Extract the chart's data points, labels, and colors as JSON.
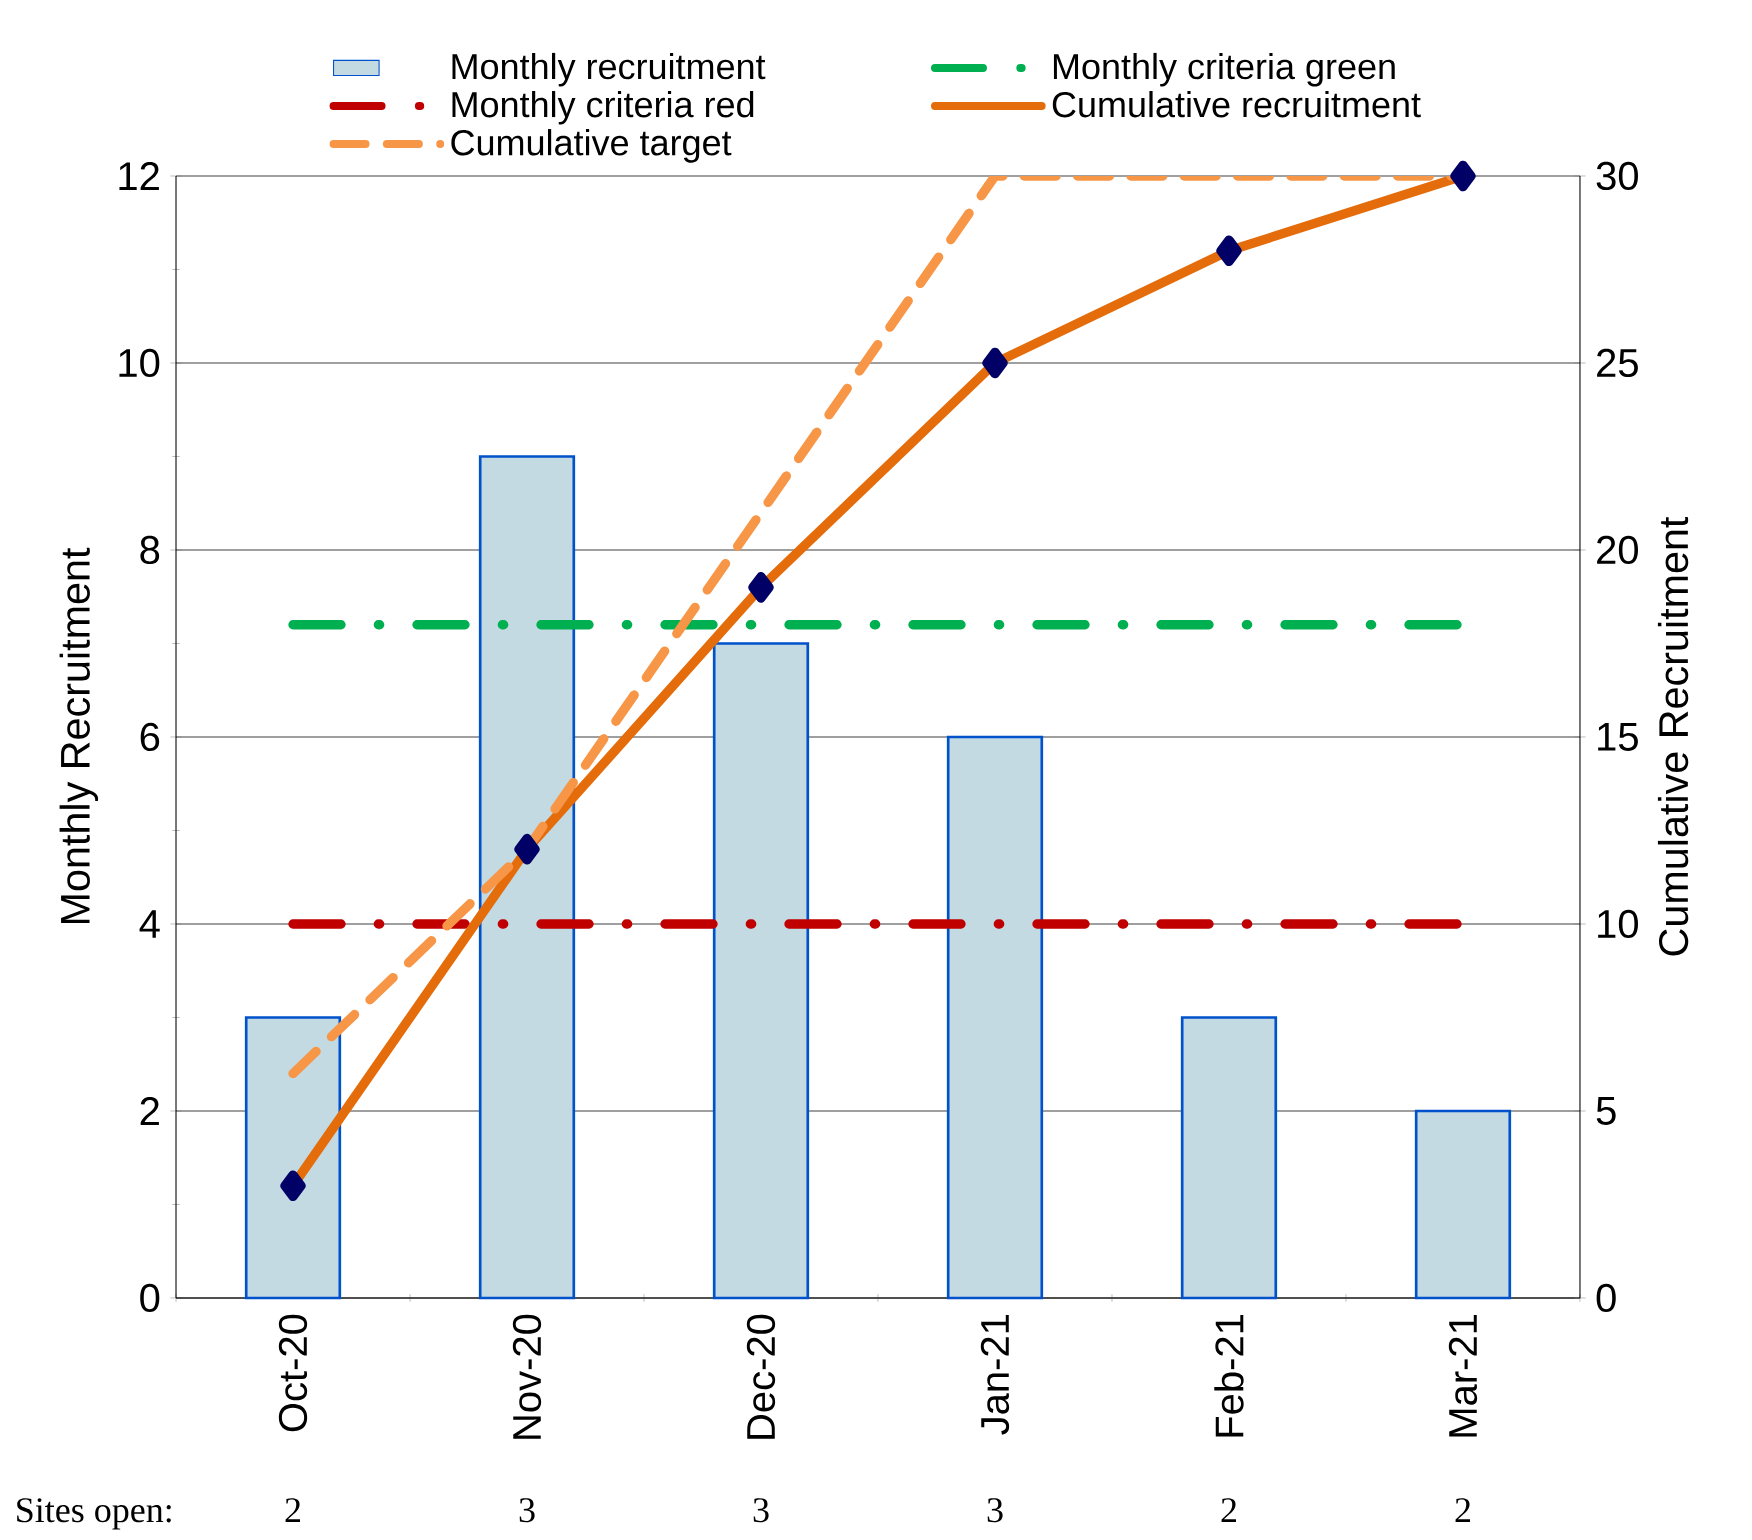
{
  "chart_data": {
    "type": "bar",
    "categories": [
      "Oct-20",
      "Nov-20",
      "Dec-20",
      "Jan-21",
      "Feb-21",
      "Mar-21"
    ],
    "series": [
      {
        "name": "Monthly recruitment",
        "color": "#c3dae2",
        "values": [
          3,
          9,
          7,
          6,
          3,
          2
        ]
      },
      {
        "name": "Monthly criteria green",
        "type": "line",
        "color": "#00b050",
        "line_style": "dashed",
        "values": [
          7.2,
          7.2,
          7.2,
          7.2,
          7.2,
          7.2
        ]
      },
      {
        "name": "Monthly criteria red",
        "type": "line",
        "color": "#c00000",
        "line_style": "dashed",
        "values": [
          4,
          4,
          4,
          4,
          4,
          4
        ]
      },
      {
        "name": "Cumulative recruitment",
        "type": "line",
        "axis": "y2",
        "color": "#e46c0a",
        "marker": "diamond",
        "values": [
          3,
          12,
          19,
          25,
          28,
          30
        ]
      },
      {
        "name": "Cumulative target",
        "type": "line",
        "axis": "y2",
        "color": "#f79646",
        "line_style": "dashed",
        "values": [
          6,
          12,
          21,
          30,
          30,
          30
        ]
      }
    ],
    "ylabel": "Monthly Recruitment",
    "y2label": "Cumulative Recruitment",
    "ylim": [
      0,
      12
    ],
    "yticks": [
      0,
      2,
      4,
      6,
      8,
      10,
      12
    ],
    "y2lim": [
      0,
      30
    ],
    "y2ticks": [
      0,
      5,
      10,
      15,
      20,
      25,
      30
    ],
    "grid": "y",
    "legend": "top",
    "annotations": [
      "Sites open:",
      "2",
      "3",
      "3",
      "3",
      "2",
      "2"
    ]
  }
}
